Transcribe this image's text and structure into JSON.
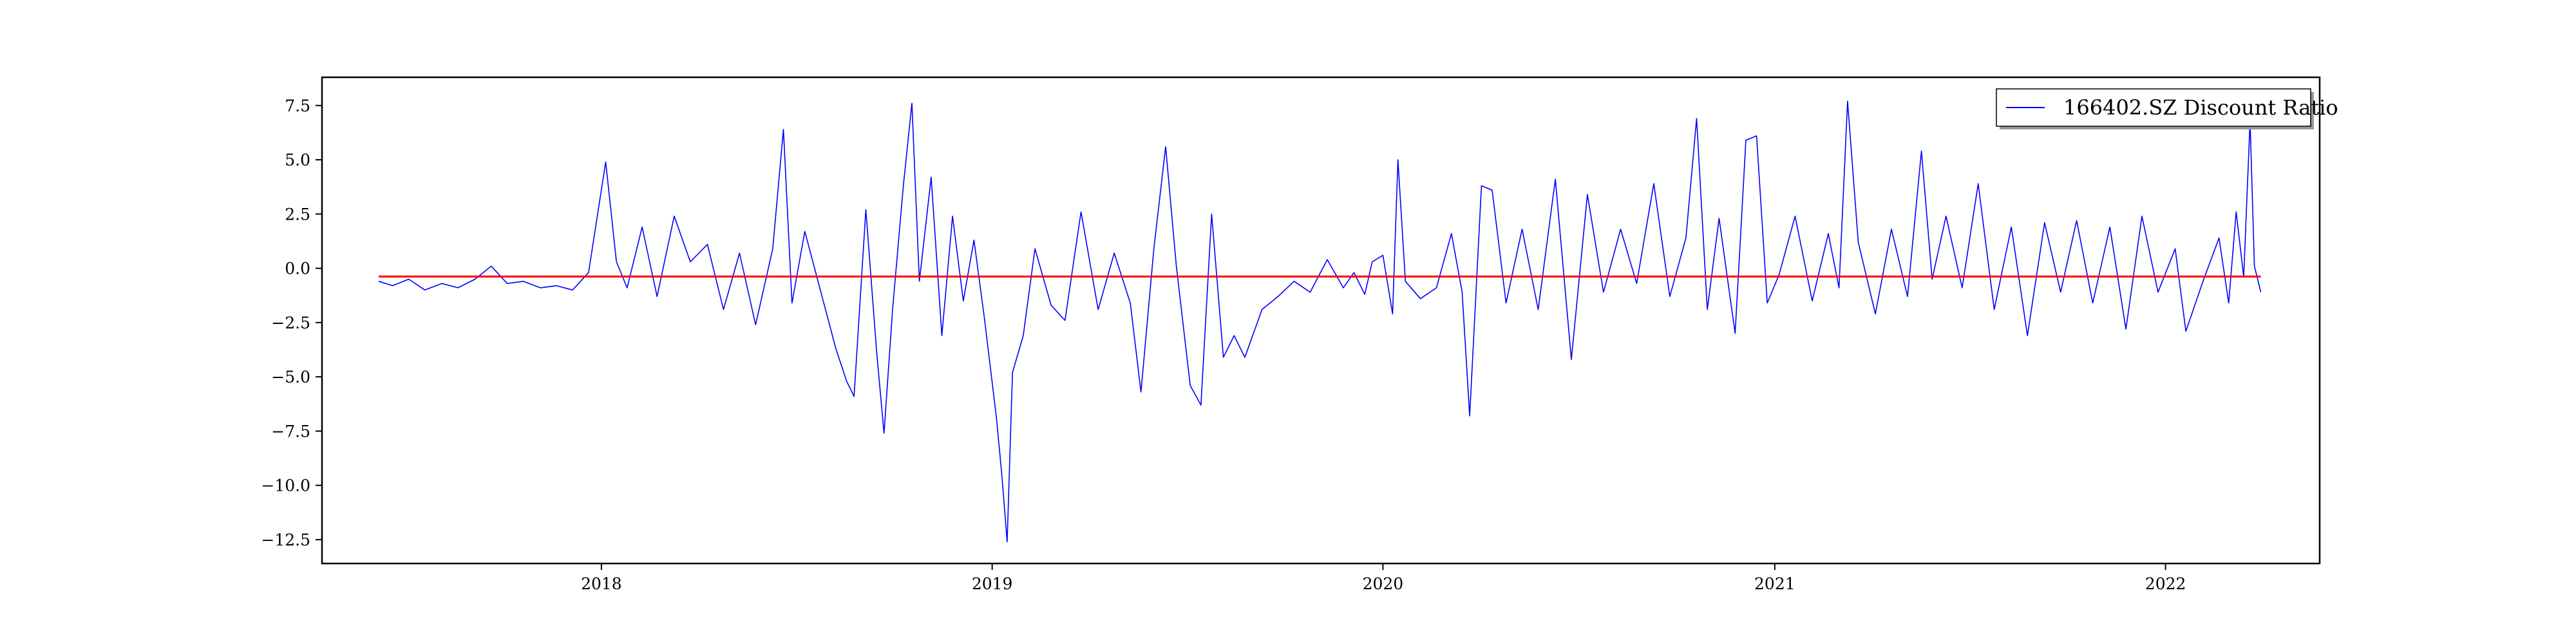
{
  "chart_data": {
    "type": "line",
    "title": "",
    "xlabel": "",
    "ylabel": "",
    "xlim": [
      "2017-04-15",
      "2022-05-25"
    ],
    "ylim": [
      -13.6,
      8.8
    ],
    "x_ticks": [
      {
        "label": "2018",
        "date": "2018-01-01"
      },
      {
        "label": "2019",
        "date": "2019-01-01"
      },
      {
        "label": "2020",
        "date": "2020-01-01"
      },
      {
        "label": "2021",
        "date": "2021-01-01"
      },
      {
        "label": "2022",
        "date": "2022-01-01"
      }
    ],
    "y_ticks": [
      7.5,
      5.0,
      2.5,
      0.0,
      -2.5,
      -5.0,
      -7.5,
      -10.0,
      -12.5
    ],
    "y_tick_labels": [
      "7.5",
      "5.0",
      "2.5",
      "0.0",
      "−2.5",
      "−5.0",
      "−7.5",
      "−10.0",
      "−12.5"
    ],
    "grid": false,
    "legend_position": "top-right",
    "series": [
      {
        "name": "166402.SZ Discount Ratio",
        "color": "#0000ff",
        "points": [
          [
            "2017-06-07",
            -0.6
          ],
          [
            "2017-06-20",
            -0.8
          ],
          [
            "2017-07-05",
            -0.5
          ],
          [
            "2017-07-20",
            -1.0
          ],
          [
            "2017-08-05",
            -0.7
          ],
          [
            "2017-08-20",
            -0.9
          ],
          [
            "2017-09-05",
            -0.5
          ],
          [
            "2017-09-20",
            0.1
          ],
          [
            "2017-10-05",
            -0.7
          ],
          [
            "2017-10-20",
            -0.6
          ],
          [
            "2017-11-05",
            -0.9
          ],
          [
            "2017-11-20",
            -0.8
          ],
          [
            "2017-12-05",
            -1.0
          ],
          [
            "2017-12-20",
            -0.2
          ],
          [
            "2018-01-05",
            4.9
          ],
          [
            "2018-01-15",
            0.3
          ],
          [
            "2018-01-25",
            -0.9
          ],
          [
            "2018-02-08",
            1.9
          ],
          [
            "2018-02-22",
            -1.3
          ],
          [
            "2018-03-10",
            2.4
          ],
          [
            "2018-03-25",
            0.3
          ],
          [
            "2018-04-10",
            1.1
          ],
          [
            "2018-04-25",
            -1.9
          ],
          [
            "2018-05-10",
            0.7
          ],
          [
            "2018-05-25",
            -2.6
          ],
          [
            "2018-06-10",
            0.9
          ],
          [
            "2018-06-20",
            6.4
          ],
          [
            "2018-06-28",
            -1.6
          ],
          [
            "2018-07-10",
            1.7
          ],
          [
            "2018-07-25",
            -1.1
          ],
          [
            "2018-08-08",
            -3.7
          ],
          [
            "2018-08-18",
            -5.2
          ],
          [
            "2018-08-25",
            -5.9
          ],
          [
            "2018-09-05",
            2.7
          ],
          [
            "2018-09-15",
            -3.8
          ],
          [
            "2018-09-22",
            -7.6
          ],
          [
            "2018-09-30",
            -1.9
          ],
          [
            "2018-10-10",
            3.8
          ],
          [
            "2018-10-18",
            7.6
          ],
          [
            "2018-10-25",
            -0.6
          ],
          [
            "2018-11-05",
            4.2
          ],
          [
            "2018-11-15",
            -3.1
          ],
          [
            "2018-11-25",
            2.4
          ],
          [
            "2018-12-05",
            -1.5
          ],
          [
            "2018-12-15",
            1.3
          ],
          [
            "2018-12-25",
            -2.4
          ],
          [
            "2019-01-05",
            -6.9
          ],
          [
            "2019-01-10",
            -9.5
          ],
          [
            "2019-01-15",
            -12.6
          ],
          [
            "2019-01-20",
            -4.8
          ],
          [
            "2019-01-30",
            -3.1
          ],
          [
            "2019-02-10",
            0.9
          ],
          [
            "2019-02-25",
            -1.7
          ],
          [
            "2019-03-10",
            -2.4
          ],
          [
            "2019-03-25",
            2.6
          ],
          [
            "2019-04-10",
            -1.9
          ],
          [
            "2019-04-25",
            0.7
          ],
          [
            "2019-05-10",
            -1.6
          ],
          [
            "2019-05-20",
            -5.7
          ],
          [
            "2019-06-01",
            0.9
          ],
          [
            "2019-06-12",
            5.6
          ],
          [
            "2019-06-22",
            0.1
          ],
          [
            "2019-07-05",
            -5.4
          ],
          [
            "2019-07-15",
            -6.3
          ],
          [
            "2019-07-25",
            2.5
          ],
          [
            "2019-08-05",
            -4.1
          ],
          [
            "2019-08-15",
            -3.1
          ],
          [
            "2019-08-25",
            -4.1
          ],
          [
            "2019-09-10",
            -1.9
          ],
          [
            "2019-09-25",
            -1.3
          ],
          [
            "2019-10-10",
            -0.6
          ],
          [
            "2019-10-25",
            -1.1
          ],
          [
            "2019-11-10",
            0.4
          ],
          [
            "2019-11-25",
            -0.9
          ],
          [
            "2019-12-05",
            -0.2
          ],
          [
            "2019-12-15",
            -1.2
          ],
          [
            "2019-12-22",
            0.3
          ],
          [
            "2020-01-01",
            0.6
          ],
          [
            "2020-01-10",
            -2.1
          ],
          [
            "2020-01-15",
            5.0
          ],
          [
            "2020-01-22",
            -0.6
          ],
          [
            "2020-02-05",
            -1.4
          ],
          [
            "2020-02-20",
            -0.9
          ],
          [
            "2020-03-05",
            1.6
          ],
          [
            "2020-03-15",
            -1.1
          ],
          [
            "2020-03-22",
            -6.8
          ],
          [
            "2020-04-02",
            3.8
          ],
          [
            "2020-04-12",
            3.6
          ],
          [
            "2020-04-25",
            -1.6
          ],
          [
            "2020-05-10",
            1.8
          ],
          [
            "2020-05-25",
            -1.9
          ],
          [
            "2020-06-10",
            4.1
          ],
          [
            "2020-06-25",
            -4.2
          ],
          [
            "2020-07-10",
            3.4
          ],
          [
            "2020-07-25",
            -1.1
          ],
          [
            "2020-08-10",
            1.8
          ],
          [
            "2020-08-25",
            -0.7
          ],
          [
            "2020-09-10",
            3.9
          ],
          [
            "2020-09-25",
            -1.3
          ],
          [
            "2020-10-10",
            1.4
          ],
          [
            "2020-10-20",
            6.9
          ],
          [
            "2020-10-30",
            -1.9
          ],
          [
            "2020-11-10",
            2.3
          ],
          [
            "2020-11-25",
            -3.0
          ],
          [
            "2020-12-05",
            5.9
          ],
          [
            "2020-12-15",
            6.1
          ],
          [
            "2020-12-25",
            -1.6
          ],
          [
            "2021-01-05",
            -0.3
          ],
          [
            "2021-01-20",
            2.4
          ],
          [
            "2021-02-05",
            -1.5
          ],
          [
            "2021-02-20",
            1.6
          ],
          [
            "2021-03-02",
            -0.9
          ],
          [
            "2021-03-10",
            7.7
          ],
          [
            "2021-03-20",
            1.2
          ],
          [
            "2021-04-05",
            -2.1
          ],
          [
            "2021-04-20",
            1.8
          ],
          [
            "2021-05-05",
            -1.3
          ],
          [
            "2021-05-18",
            5.4
          ],
          [
            "2021-05-28",
            -0.5
          ],
          [
            "2021-06-10",
            2.4
          ],
          [
            "2021-06-25",
            -0.9
          ],
          [
            "2021-07-10",
            3.9
          ],
          [
            "2021-07-25",
            -1.9
          ],
          [
            "2021-08-10",
            1.9
          ],
          [
            "2021-08-25",
            -3.1
          ],
          [
            "2021-09-10",
            2.1
          ],
          [
            "2021-09-25",
            -1.1
          ],
          [
            "2021-10-10",
            2.2
          ],
          [
            "2021-10-25",
            -1.6
          ],
          [
            "2021-11-10",
            1.9
          ],
          [
            "2021-11-25",
            -2.8
          ],
          [
            "2021-12-10",
            2.4
          ],
          [
            "2021-12-25",
            -1.1
          ],
          [
            "2022-01-10",
            0.9
          ],
          [
            "2022-01-20",
            -2.9
          ],
          [
            "2022-02-05",
            -0.6
          ],
          [
            "2022-02-20",
            1.4
          ],
          [
            "2022-03-01",
            -1.6
          ],
          [
            "2022-03-08",
            2.6
          ],
          [
            "2022-03-15",
            -0.4
          ],
          [
            "2022-03-21",
            6.8
          ],
          [
            "2022-03-25",
            0.1
          ],
          [
            "2022-03-31",
            -1.1
          ]
        ]
      },
      {
        "name": "",
        "color": "#ff0000",
        "points": [
          [
            "2017-06-07",
            -0.38
          ],
          [
            "2022-03-31",
            -0.38
          ]
        ]
      }
    ]
  }
}
